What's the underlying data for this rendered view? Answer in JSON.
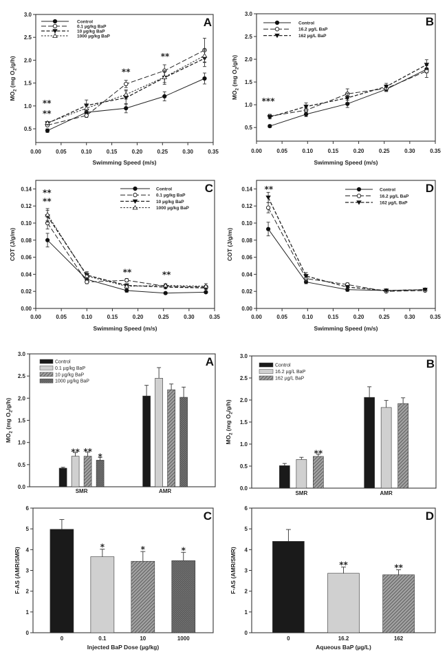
{
  "figure": {
    "background": "#ffffff",
    "panel_count": 8
  },
  "chart_data": [
    {
      "id": "line-A",
      "type": "line",
      "panel_label": "A",
      "xlabel": "Swimming Speed (m/s)",
      "ylabel": [
        {
          "t": "MO"
        },
        {
          "t": "2",
          "sub": true
        },
        {
          "t": " (mg O"
        },
        {
          "t": "2",
          "sub": true
        },
        {
          "t": "/g/h)"
        }
      ],
      "xlim": [
        0,
        0.35
      ],
      "ylim": [
        0.2,
        3.0
      ],
      "xticks": [
        "0.00",
        "0.05",
        "0.10",
        "0.15",
        "0.20",
        "0.25",
        "0.30",
        "0.35"
      ],
      "yticks": [
        "0.5",
        "1.0",
        "1.5",
        "2.0",
        "2.5",
        "3.0"
      ],
      "legend_position": "top-left",
      "grid": false,
      "x": [
        0.023,
        0.1,
        0.178,
        0.254,
        0.333
      ],
      "series": [
        {
          "name": "Control",
          "marker": "filled-circle",
          "line": "solid",
          "y": [
            0.46,
            0.86,
            0.95,
            1.21,
            1.6
          ],
          "err": [
            0.04,
            0.05,
            0.1,
            0.1,
            0.12
          ]
        },
        {
          "name": "0.1 µg/kg BaP",
          "marker": "open-circle",
          "line": "long-dash",
          "y": [
            0.58,
            0.79,
            1.48,
            1.77,
            2.22
          ],
          "err": [
            0.03,
            0.04,
            0.08,
            0.13,
            0.26
          ]
        },
        {
          "name": "10 µg/kg BaP",
          "marker": "filled-triangle-down",
          "line": "dash",
          "y": [
            0.62,
            1.01,
            1.18,
            1.62,
            2.04
          ],
          "err": [
            0.03,
            0.12,
            0.15,
            0.15,
            0.18
          ]
        },
        {
          "name": "1000 µg/kg BaP",
          "marker": "open-triangle-up",
          "line": "short-dash",
          "y": [
            0.63,
            0.95,
            1.25,
            1.63,
            2.1
          ],
          "err": [
            0.03,
            0.07,
            0.1,
            0.12,
            0.15
          ]
        }
      ],
      "annotations": [
        {
          "text": "**",
          "x": 0.022,
          "y": 1.09
        },
        {
          "text": "**",
          "x": 0.022,
          "y": 0.86
        },
        {
          "text": "**",
          "x": 0.178,
          "y": 1.77
        },
        {
          "text": "**",
          "x": 0.255,
          "y": 2.11
        }
      ]
    },
    {
      "id": "line-B",
      "type": "line",
      "panel_label": "B",
      "xlabel": "Swimming Speed (m/s)",
      "ylabel": [
        {
          "t": "MO"
        },
        {
          "t": "2",
          "sub": true
        },
        {
          "t": " (mg O"
        },
        {
          "t": "2",
          "sub": true
        },
        {
          "t": "/g/h)"
        }
      ],
      "xlim": [
        0,
        0.35
      ],
      "ylim": [
        0.2,
        3.0
      ],
      "xticks": [
        "0.00",
        "0.05",
        "0.10",
        "0.15",
        "0.20",
        "0.25",
        "0.30",
        "0.35"
      ],
      "yticks": [
        "0.5",
        "1.0",
        "1.5",
        "2.0",
        "2.5",
        "3.0"
      ],
      "legend_position": "top-left",
      "grid": false,
      "x": [
        0.026,
        0.097,
        0.178,
        0.254,
        0.333
      ],
      "series": [
        {
          "name": "Control",
          "marker": "filled-circle",
          "line": "solid",
          "y": [
            0.53,
            0.79,
            1.02,
            1.34,
            1.78
          ],
          "err": [
            0.03,
            0.05,
            0.08,
            0.05,
            0.08
          ]
        },
        {
          "name": "16.2 µg/L BaP",
          "marker": "open-circle",
          "line": "long-dash",
          "y": [
            0.75,
            0.88,
            1.24,
            1.36,
            1.74
          ],
          "err": [
            0.04,
            0.05,
            0.11,
            0.06,
            0.14
          ]
        },
        {
          "name": "162 µg/L BaP",
          "marker": "filled-triangle-down",
          "line": "dash",
          "y": [
            0.73,
            0.96,
            1.15,
            1.4,
            1.88
          ],
          "err": [
            0.04,
            0.08,
            0.1,
            0.07,
            0.11
          ]
        }
      ],
      "annotations": [
        {
          "text": "***",
          "x": 0.023,
          "y": 1.11
        }
      ]
    },
    {
      "id": "line-C",
      "type": "line",
      "panel_label": "C",
      "xlabel": "Swimming Speed (m/s)",
      "ylabel": [
        {
          "t": "COT (J/g/m)"
        }
      ],
      "xlim": [
        0,
        0.35
      ],
      "ylim": [
        0,
        0.15
      ],
      "xticks": [
        "0.00",
        "0.05",
        "0.10",
        "0.15",
        "0.20",
        "0.25",
        "0.30",
        "0.35"
      ],
      "yticks": [
        "0.00",
        "0.02",
        "0.04",
        "0.06",
        "0.08",
        "0.10",
        "0.12",
        "0.14"
      ],
      "legend_position": "top-right",
      "grid": false,
      "x": [
        0.023,
        0.1,
        0.178,
        0.254,
        0.333
      ],
      "series": [
        {
          "name": "Control",
          "marker": "filled-circle",
          "line": "solid",
          "y": [
            0.08,
            0.034,
            0.021,
            0.018,
            0.019
          ],
          "err": [
            0.008,
            0.003,
            0.002,
            0.001,
            0.001
          ]
        },
        {
          "name": "0.1 µg/kg BaP",
          "marker": "open-circle",
          "line": "long-dash",
          "y": [
            0.1,
            0.031,
            0.033,
            0.026,
            0.025
          ],
          "err": [
            0.007,
            0.002,
            0.002,
            0.002,
            0.002
          ]
        },
        {
          "name": "10 µg/kg BaP",
          "marker": "filled-triangle-down",
          "line": "dash",
          "y": [
            0.108,
            0.039,
            0.027,
            0.025,
            0.024
          ],
          "err": [
            0.007,
            0.004,
            0.002,
            0.002,
            0.002
          ]
        },
        {
          "name": "1000 µg/kg BaP",
          "marker": "open-triangle-up",
          "line": "short-dash",
          "y": [
            0.11,
            0.038,
            0.026,
            0.027,
            0.026
          ],
          "err": [
            0.007,
            0.004,
            0.002,
            0.002,
            0.003
          ]
        }
      ],
      "annotations": [
        {
          "text": "**",
          "x": 0.022,
          "y": 0.137
        },
        {
          "text": "**",
          "x": 0.022,
          "y": 0.127
        },
        {
          "text": "**",
          "x": 0.179,
          "y": 0.044
        },
        {
          "text": "**",
          "x": 0.256,
          "y": 0.041
        }
      ]
    },
    {
      "id": "line-D",
      "type": "line",
      "panel_label": "D",
      "xlabel": "Swimming Speed (m/s)",
      "ylabel": [
        {
          "t": "COT (J/g/m)"
        }
      ],
      "xlim": [
        0,
        0.35
      ],
      "ylim": [
        0,
        0.15
      ],
      "xticks": [
        "0.00",
        "0.05",
        "0.10",
        "0.15",
        "0.20",
        "0.25",
        "0.30",
        "0.35"
      ],
      "yticks": [
        "0.00",
        "0.02",
        "0.04",
        "0.06",
        "0.08",
        "0.10",
        "0.12",
        "0.14"
      ],
      "legend_position": "top-right",
      "grid": false,
      "x": [
        0.023,
        0.097,
        0.178,
        0.254,
        0.33
      ],
      "series": [
        {
          "name": "Control",
          "marker": "filled-circle",
          "line": "solid",
          "y": [
            0.093,
            0.031,
            0.022,
            0.021,
            0.022
          ],
          "err": [
            0.008,
            0.002,
            0.002,
            0.001,
            0.001
          ]
        },
        {
          "name": "16.2 µg/L BaP",
          "marker": "open-circle",
          "line": "long-dash",
          "y": [
            0.118,
            0.035,
            0.028,
            0.02,
            0.021
          ],
          "err": [
            0.006,
            0.003,
            0.002,
            0.001,
            0.001
          ]
        },
        {
          "name": "162 µg/L BaP",
          "marker": "filled-triangle-down",
          "line": "dash",
          "y": [
            0.13,
            0.038,
            0.025,
            0.021,
            0.022
          ],
          "err": [
            0.006,
            0.004,
            0.002,
            0.001,
            0.001
          ]
        }
      ],
      "annotations": [
        {
          "text": "**",
          "x": 0.024,
          "y": 0.141
        }
      ]
    },
    {
      "id": "bar-A",
      "type": "bar",
      "panel_label": "A",
      "xlabel": "",
      "ylabel": [
        {
          "t": "MO"
        },
        {
          "t": "2",
          "sub": true
        },
        {
          "t": " (mg O"
        },
        {
          "t": "2",
          "sub": true
        },
        {
          "t": "/g/h)"
        }
      ],
      "ylim": [
        0,
        3.0
      ],
      "yticks": [
        "0.0",
        "0.5",
        "1.0",
        "1.5",
        "2.0",
        "2.5",
        "3.0"
      ],
      "categories": [
        "SMR",
        "AMR"
      ],
      "legend_position": "top-left",
      "grid": false,
      "series": [
        {
          "name": "Control",
          "fill": "#1a1a1a",
          "pattern": "none",
          "values": [
            0.42,
            2.05
          ],
          "err": [
            0.02,
            0.24
          ]
        },
        {
          "name": "0.1 µg/kg BaP",
          "fill": "#d0d0d0",
          "pattern": "none",
          "values": [
            0.69,
            2.45
          ],
          "err": [
            0.08,
            0.24
          ]
        },
        {
          "name": "10 µg/kg BaP",
          "fill": "#a3a3a3",
          "pattern": "diagonal-hatch",
          "values": [
            0.69,
            2.19
          ],
          "err": [
            0.09,
            0.13
          ]
        },
        {
          "name": "1000 µg/kg BaP",
          "fill": "#555555",
          "pattern": "crosshatch",
          "values": [
            0.6,
            2.02
          ],
          "err": [
            0.06,
            0.23
          ]
        }
      ],
      "annotations": [
        {
          "series": 1,
          "category": 0,
          "text": "**"
        },
        {
          "series": 2,
          "category": 0,
          "text": "**"
        },
        {
          "series": 3,
          "category": 0,
          "text": "*"
        }
      ]
    },
    {
      "id": "bar-B",
      "type": "bar",
      "panel_label": "B",
      "xlabel": "",
      "ylabel": [
        {
          "t": "MO"
        },
        {
          "t": "2",
          "sub": true
        },
        {
          "t": " (mg O"
        },
        {
          "t": "2",
          "sub": true
        },
        {
          "t": "/g/h)"
        }
      ],
      "ylim": [
        0,
        3.0
      ],
      "yticks": [
        "0.0",
        "0.5",
        "1.0",
        "1.5",
        "2.0",
        "2.5",
        "3.0"
      ],
      "categories": [
        "SMR",
        "AMR"
      ],
      "legend_position": "top-left",
      "grid": false,
      "series": [
        {
          "name": "Control",
          "fill": "#1a1a1a",
          "pattern": "none",
          "values": [
            0.51,
            2.06
          ],
          "err": [
            0.05,
            0.24
          ]
        },
        {
          "name": "16.2 µg/L BaP",
          "fill": "#d0d0d0",
          "pattern": "none",
          "values": [
            0.65,
            1.83
          ],
          "err": [
            0.05,
            0.16
          ]
        },
        {
          "name": "162 µg/L BaP",
          "fill": "#a3a3a3",
          "pattern": "diagonal-hatch",
          "values": [
            0.72,
            1.92
          ],
          "err": [
            0.05,
            0.13
          ]
        }
      ],
      "annotations": [
        {
          "series": 2,
          "category": 0,
          "text": "**"
        }
      ]
    },
    {
      "id": "fas-C",
      "type": "bar",
      "panel_label": "C",
      "xlabel": "Injected BaP Dose (µg/kg)",
      "ylabel": [
        {
          "t": "F-AS (AMR/SMR)"
        }
      ],
      "ylim": [
        0,
        6
      ],
      "yticks": [
        "0",
        "1",
        "2",
        "3",
        "4",
        "5",
        "6"
      ],
      "categories": [
        "0",
        "0.1",
        "10",
        "1000"
      ],
      "values": [
        4.98,
        3.66,
        3.44,
        3.47
      ],
      "err": [
        0.47,
        0.36,
        0.47,
        0.4
      ],
      "bar_styles": [
        {
          "fill": "#1a1a1a",
          "pattern": "none"
        },
        {
          "fill": "#d0d0d0",
          "pattern": "none"
        },
        {
          "fill": "#a3a3a3",
          "pattern": "diagonal-hatch"
        },
        {
          "fill": "#555555",
          "pattern": "crosshatch"
        }
      ],
      "grid": false,
      "annotations": [
        {
          "category": 1,
          "text": "*"
        },
        {
          "category": 2,
          "text": "*"
        },
        {
          "category": 3,
          "text": "*"
        }
      ]
    },
    {
      "id": "fas-D",
      "type": "bar",
      "panel_label": "D",
      "xlabel": "Aqueous BaP (µg/L)",
      "ylabel": [
        {
          "t": "F-AS (AMR/SMR)"
        }
      ],
      "ylim": [
        0,
        6
      ],
      "yticks": [
        "0",
        "1",
        "2",
        "3",
        "4",
        "5",
        "6"
      ],
      "categories": [
        "0",
        "16.2",
        "162"
      ],
      "values": [
        4.4,
        2.86,
        2.79
      ],
      "err": [
        0.57,
        0.3,
        0.24
      ],
      "bar_styles": [
        {
          "fill": "#1a1a1a",
          "pattern": "none"
        },
        {
          "fill": "#d0d0d0",
          "pattern": "none"
        },
        {
          "fill": "#a3a3a3",
          "pattern": "diagonal-hatch"
        }
      ],
      "grid": false,
      "annotations": [
        {
          "category": 1,
          "text": "**"
        },
        {
          "category": 2,
          "text": "**"
        }
      ]
    }
  ]
}
